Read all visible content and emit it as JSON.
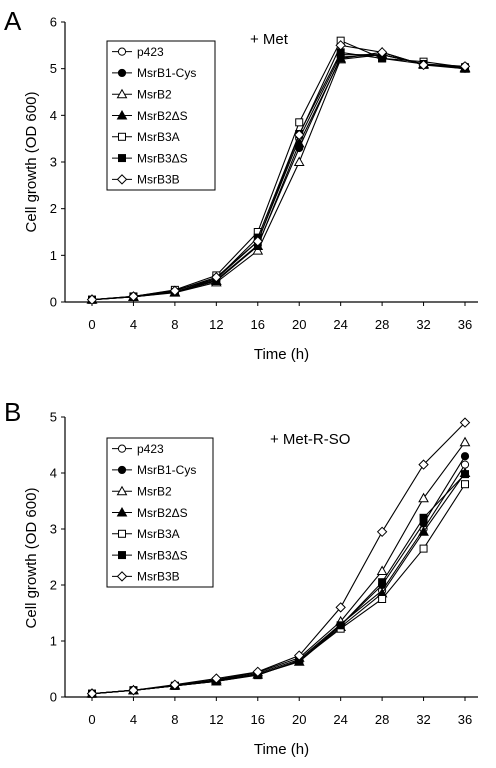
{
  "chart_data": [
    {
      "type": "line",
      "panel": "A",
      "title": "+ Met",
      "xlabel": "Time (h)",
      "ylabel": "Cell growth (OD 600)",
      "xlim": [
        0,
        36
      ],
      "ylim": [
        0,
        6
      ],
      "x_ticks": [
        "0",
        "4",
        "8",
        "12",
        "16",
        "20",
        "24",
        "28",
        "32",
        "36"
      ],
      "y_ticks": [
        "0",
        "1",
        "2",
        "3",
        "4",
        "5",
        "6"
      ],
      "x": [
        0,
        4,
        8,
        12,
        16,
        20,
        24,
        28,
        32,
        36
      ],
      "grid": false,
      "legend_position": "top-left",
      "series": [
        {
          "name": "p423",
          "marker": "circle-open",
          "values": [
            0.05,
            0.12,
            0.25,
            0.5,
            1.3,
            3.5,
            5.3,
            5.3,
            5.1,
            5.05
          ]
        },
        {
          "name": "MsrB1-Cys",
          "marker": "circle-filled",
          "values": [
            0.05,
            0.11,
            0.22,
            0.47,
            1.22,
            3.3,
            5.25,
            5.3,
            5.1,
            5.0
          ]
        },
        {
          "name": "MsrB2",
          "marker": "triangle-open",
          "values": [
            0.05,
            0.11,
            0.2,
            0.42,
            1.1,
            3.0,
            5.2,
            5.3,
            5.1,
            5.02
          ]
        },
        {
          "name": "MsrB2ΔS",
          "marker": "triangle-filled",
          "values": [
            0.05,
            0.11,
            0.21,
            0.45,
            1.2,
            3.4,
            5.22,
            5.35,
            5.08,
            5.0
          ]
        },
        {
          "name": "MsrB3A",
          "marker": "square-open",
          "values": [
            0.05,
            0.12,
            0.26,
            0.57,
            1.5,
            3.85,
            5.6,
            5.22,
            5.15,
            5.03
          ]
        },
        {
          "name": "MsrB3ΔS",
          "marker": "square-filled",
          "values": [
            0.05,
            0.11,
            0.21,
            0.5,
            1.38,
            3.6,
            5.35,
            5.22,
            5.1,
            5.0
          ]
        },
        {
          "name": "MsrB3B",
          "marker": "diamond-open",
          "values": [
            0.05,
            0.12,
            0.24,
            0.53,
            1.3,
            3.58,
            5.5,
            5.35,
            5.08,
            5.05
          ]
        }
      ]
    },
    {
      "type": "line",
      "panel": "B",
      "title": "+ Met-R-SO",
      "xlabel": "Time (h)",
      "ylabel": "Cell growth (OD 600)",
      "xlim": [
        0,
        36
      ],
      "ylim": [
        0,
        5
      ],
      "x_ticks": [
        "0",
        "4",
        "8",
        "12",
        "16",
        "20",
        "24",
        "28",
        "32",
        "36"
      ],
      "y_ticks": [
        "0",
        "1",
        "2",
        "3",
        "4",
        "5"
      ],
      "x": [
        0,
        4,
        8,
        12,
        16,
        20,
        24,
        28,
        32,
        36
      ],
      "grid": false,
      "legend_position": "top-left",
      "series": [
        {
          "name": "p423",
          "marker": "circle-open",
          "values": [
            0.06,
            0.12,
            0.2,
            0.3,
            0.42,
            0.67,
            1.3,
            1.9,
            3.0,
            4.15
          ]
        },
        {
          "name": "MsrB1-Cys",
          "marker": "circle-filled",
          "values": [
            0.06,
            0.12,
            0.2,
            0.29,
            0.4,
            0.64,
            1.28,
            2.0,
            3.1,
            4.3
          ]
        },
        {
          "name": "MsrB2",
          "marker": "triangle-open",
          "values": [
            0.06,
            0.12,
            0.21,
            0.31,
            0.44,
            0.7,
            1.35,
            2.25,
            3.55,
            4.55
          ]
        },
        {
          "name": "MsrB2ΔS",
          "marker": "triangle-filled",
          "values": [
            0.06,
            0.12,
            0.2,
            0.28,
            0.4,
            0.63,
            1.25,
            1.85,
            2.95,
            4.0
          ]
        },
        {
          "name": "MsrB3A",
          "marker": "square-open",
          "values": [
            0.06,
            0.12,
            0.2,
            0.28,
            0.39,
            0.65,
            1.22,
            1.75,
            2.65,
            3.8
          ]
        },
        {
          "name": "MsrB3ΔS",
          "marker": "square-filled",
          "values": [
            0.06,
            0.12,
            0.2,
            0.28,
            0.4,
            0.64,
            1.28,
            2.05,
            3.2,
            3.98
          ]
        },
        {
          "name": "MsrB3B",
          "marker": "diamond-open",
          "values": [
            0.06,
            0.12,
            0.22,
            0.33,
            0.45,
            0.74,
            1.6,
            2.95,
            4.15,
            4.9
          ]
        }
      ]
    }
  ]
}
